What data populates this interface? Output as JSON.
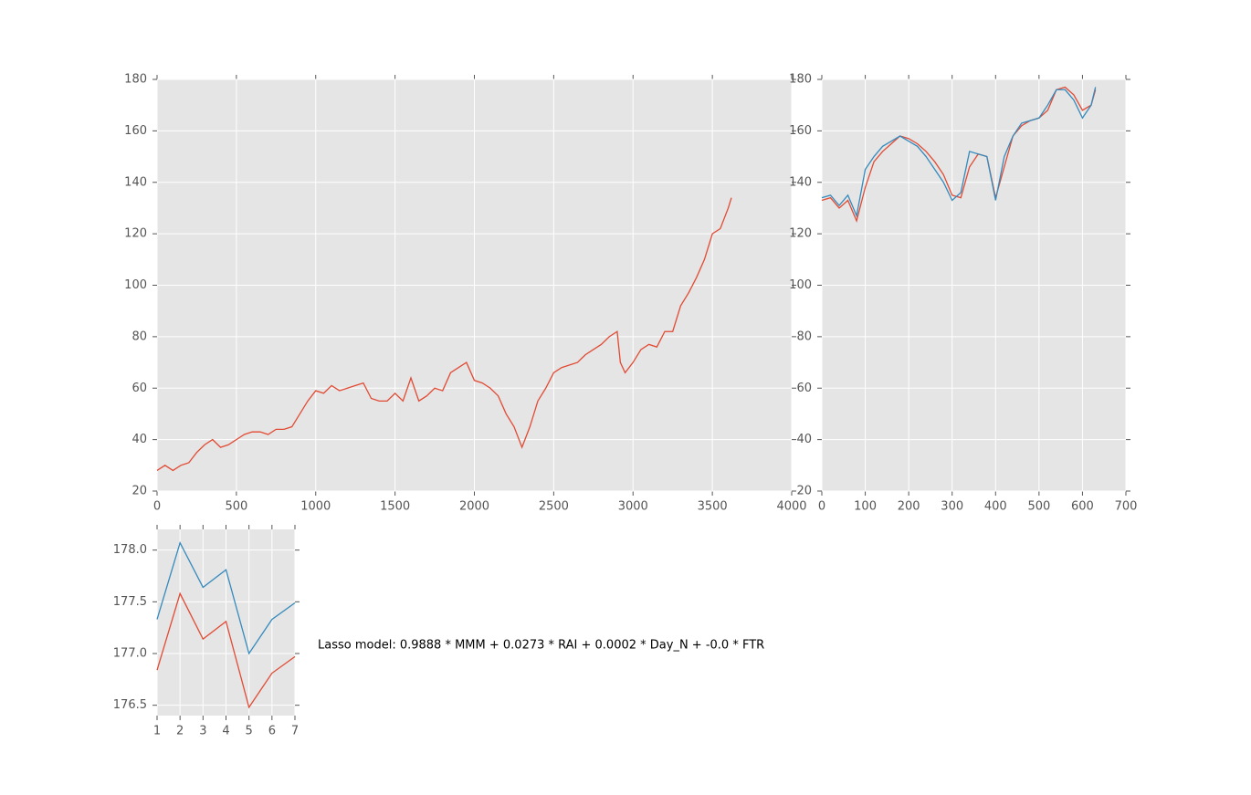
{
  "chart_data": [
    {
      "type": "line",
      "x": [
        0,
        50,
        100,
        150,
        200,
        250,
        300,
        350,
        400,
        450,
        500,
        550,
        600,
        650,
        700,
        750,
        800,
        850,
        900,
        950,
        1000,
        1050,
        1100,
        1150,
        1200,
        1250,
        1300,
        1350,
        1400,
        1450,
        1500,
        1550,
        1600,
        1650,
        1700,
        1750,
        1800,
        1850,
        1900,
        1950,
        2000,
        2050,
        2100,
        2150,
        2200,
        2250,
        2300,
        2350,
        2400,
        2450,
        2500,
        2550,
        2600,
        2650,
        2700,
        2750,
        2800,
        2850,
        2900,
        2920,
        2950,
        3000,
        3050,
        3100,
        3150,
        3200,
        3250,
        3300,
        3350,
        3400,
        3450,
        3500,
        3550,
        3600,
        3620
      ],
      "values": [
        28,
        30,
        28,
        30,
        31,
        35,
        38,
        40,
        37,
        38,
        40,
        42,
        43,
        43,
        42,
        44,
        44,
        45,
        50,
        55,
        59,
        58,
        61,
        59,
        60,
        61,
        62,
        56,
        55,
        55,
        58,
        55,
        64,
        55,
        57,
        60,
        59,
        66,
        68,
        70,
        63,
        62,
        60,
        57,
        50,
        45,
        37,
        45,
        55,
        60,
        66,
        68,
        69,
        70,
        73,
        75,
        77,
        80,
        82,
        70,
        66,
        70,
        75,
        77,
        76,
        82,
        82,
        92,
        97,
        103,
        110,
        120,
        122,
        130,
        134
      ],
      "color": "#E24A33",
      "xlim": [
        0,
        4000
      ],
      "xticks": [
        0,
        500,
        1000,
        1500,
        2000,
        2500,
        3000,
        3500,
        4000
      ],
      "ylim": [
        20,
        180
      ],
      "yticks": [
        20,
        40,
        60,
        80,
        100,
        120,
        140,
        160,
        180
      ],
      "grid": true
    },
    {
      "type": "line",
      "x": [
        0,
        20,
        40,
        60,
        80,
        100,
        120,
        140,
        160,
        180,
        200,
        220,
        240,
        260,
        280,
        300,
        320,
        340,
        360,
        380,
        400,
        420,
        440,
        460,
        480,
        500,
        520,
        540,
        560,
        580,
        600,
        620,
        630
      ],
      "series": [
        {
          "color": "#E24A33",
          "values": [
            133,
            134,
            130,
            133,
            125,
            138,
            148,
            152,
            155,
            158,
            157,
            155,
            152,
            148,
            143,
            135,
            134,
            146,
            151,
            150,
            134,
            146,
            158,
            162,
            164,
            165,
            168,
            176,
            177,
            174,
            168,
            170,
            176
          ]
        },
        {
          "color": "#348ABD",
          "values": [
            134,
            135,
            131,
            135,
            127,
            145,
            150,
            154,
            156,
            158,
            156,
            154,
            150,
            145,
            140,
            133,
            136,
            152,
            151,
            150,
            133,
            150,
            158,
            163,
            164,
            165,
            170,
            176,
            176,
            172,
            165,
            170,
            177
          ]
        }
      ],
      "xlim": [
        0,
        700
      ],
      "xticks": [
        0,
        100,
        200,
        300,
        400,
        500,
        600,
        700
      ],
      "ylim": [
        20,
        180
      ],
      "yticks": [
        20,
        40,
        60,
        80,
        100,
        120,
        140,
        160,
        180
      ],
      "grid": true
    },
    {
      "type": "line",
      "x": [
        1,
        2,
        3,
        4,
        5,
        6,
        7
      ],
      "series": [
        {
          "color": "#348ABD",
          "values": [
            177.33,
            178.07,
            177.64,
            177.81,
            177.0,
            177.33,
            177.49
          ]
        },
        {
          "color": "#E24A33",
          "values": [
            176.84,
            177.58,
            177.14,
            177.31,
            176.48,
            176.81,
            176.97
          ]
        }
      ],
      "xlim": [
        1,
        7
      ],
      "xticks": [
        1,
        2,
        3,
        4,
        5,
        6,
        7
      ],
      "ylim": [
        176.4,
        178.2
      ],
      "yticks": [
        {
          "value": 176.5,
          "label": "176.5"
        },
        {
          "value": 177.0,
          "label": "177.0"
        },
        {
          "value": 177.5,
          "label": "177.5"
        },
        {
          "value": 178.0,
          "label": "178.0"
        }
      ],
      "grid": true,
      "annotation": "Lasso model: 0.9888 * MMM + 0.0273 * RAI + 0.0002 * Day_N + -0.0 * FTR"
    }
  ]
}
